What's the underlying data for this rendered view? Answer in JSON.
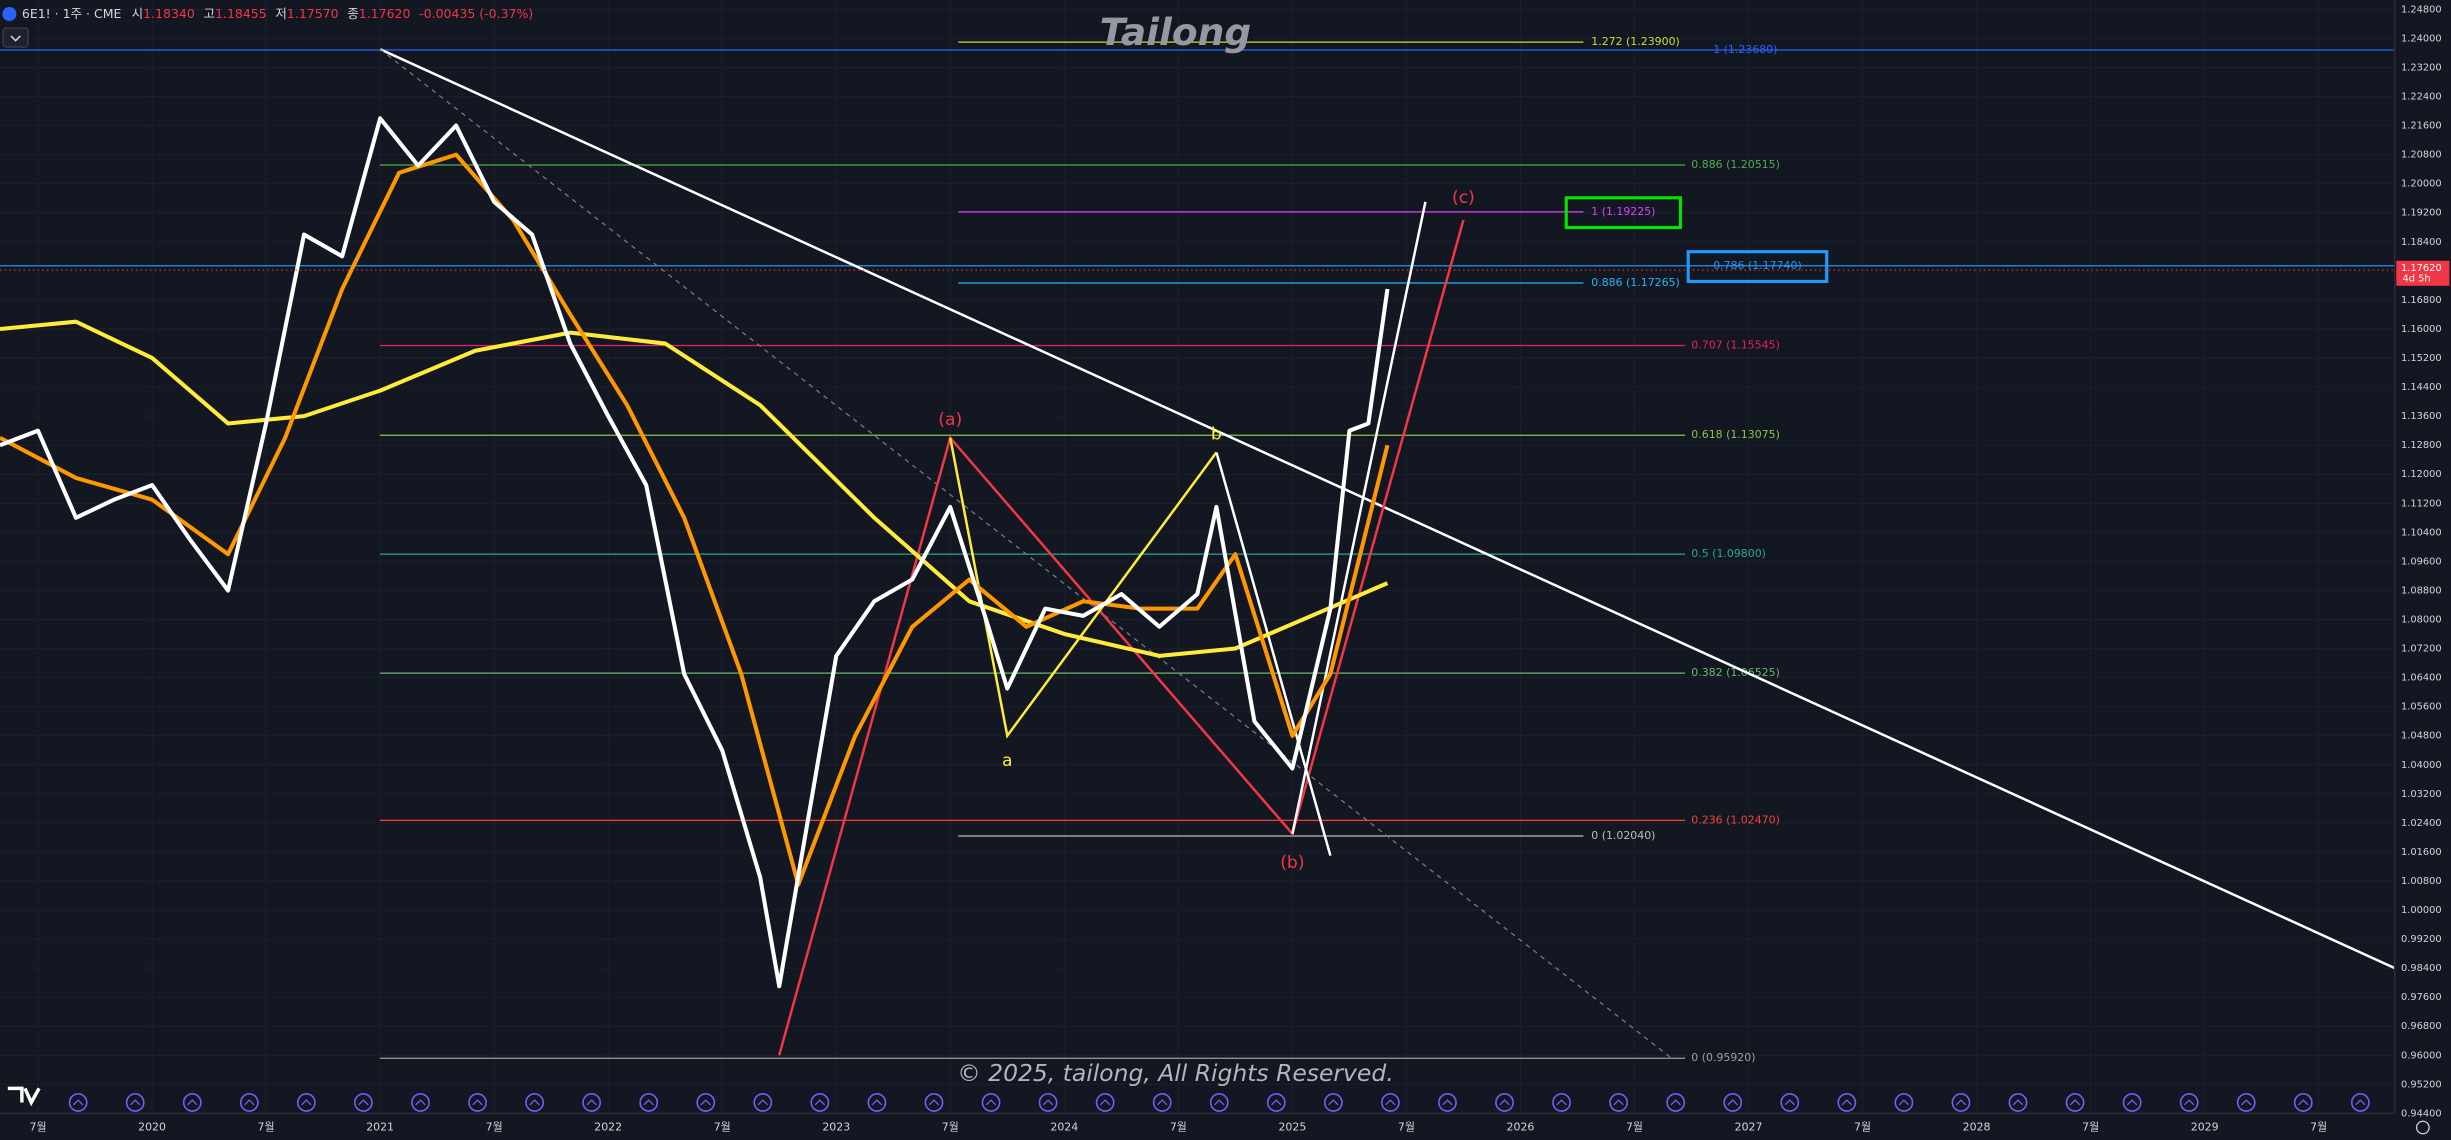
{
  "header": {
    "symbol": "6E1! · 1주 · CME",
    "o_label": "시",
    "o": "1.18340",
    "h_label": "고",
    "h": "1.18455",
    "l_label": "저",
    "l": "1.17570",
    "c_label": "종",
    "c": "1.17620",
    "change": "-0.00435 (-0.37%)"
  },
  "watermark": "Tailong",
  "copyright": "© 2025, tailong, All Rights Reserved.",
  "chart_data": {
    "type": "line",
    "grid": true,
    "xlim": [
      "2019-05",
      "2029-11"
    ],
    "ylim": [
      0.944,
      1.248
    ],
    "xticks": [
      {
        "value": "2019-07",
        "label": "7월"
      },
      {
        "value": "2020-01",
        "label": "2020"
      },
      {
        "value": "2020-07",
        "label": "7월"
      },
      {
        "value": "2021-01",
        "label": "2021"
      },
      {
        "value": "2021-07",
        "label": "7월"
      },
      {
        "value": "2022-01",
        "label": "2022"
      },
      {
        "value": "2022-07",
        "label": "7월"
      },
      {
        "value": "2023-01",
        "label": "2023"
      },
      {
        "value": "2023-07",
        "label": "7월"
      },
      {
        "value": "2024-01",
        "label": "2024"
      },
      {
        "value": "2024-07",
        "label": "7월"
      },
      {
        "value": "2025-01",
        "label": "2025"
      },
      {
        "value": "2025-07",
        "label": "7월"
      },
      {
        "value": "2026-01",
        "label": "2026"
      },
      {
        "value": "2026-07",
        "label": "7월"
      },
      {
        "value": "2027-01",
        "label": "2027"
      },
      {
        "value": "2027-07",
        "label": "7월"
      },
      {
        "value": "2028-01",
        "label": "2028"
      },
      {
        "value": "2028-07",
        "label": "7월"
      },
      {
        "value": "2029-01",
        "label": "2029"
      },
      {
        "value": "2029-07",
        "label": "7월"
      }
    ],
    "yticks": [
      {
        "value": 1.248,
        "label": "1.24800"
      },
      {
        "value": 1.24,
        "label": "1.24000"
      },
      {
        "value": 1.232,
        "label": "1.23200"
      },
      {
        "value": 1.224,
        "label": "1.22400"
      },
      {
        "value": 1.216,
        "label": "1.21600"
      },
      {
        "value": 1.208,
        "label": "1.20800"
      },
      {
        "value": 1.2,
        "label": "1.20000"
      },
      {
        "value": 1.192,
        "label": "1.19200"
      },
      {
        "value": 1.184,
        "label": "1.18400"
      },
      {
        "value": 1.168,
        "label": "1.16800"
      },
      {
        "value": 1.16,
        "label": "1.16000"
      },
      {
        "value": 1.152,
        "label": "1.15200"
      },
      {
        "value": 1.144,
        "label": "1.14400"
      },
      {
        "value": 1.136,
        "label": "1.13600"
      },
      {
        "value": 1.128,
        "label": "1.12800"
      },
      {
        "value": 1.12,
        "label": "1.12000"
      },
      {
        "value": 1.112,
        "label": "1.11200"
      },
      {
        "value": 1.104,
        "label": "1.10400"
      },
      {
        "value": 1.096,
        "label": "1.09600"
      },
      {
        "value": 1.088,
        "label": "1.08800"
      },
      {
        "value": 1.08,
        "label": "1.08000"
      },
      {
        "value": 1.072,
        "label": "1.07200"
      },
      {
        "value": 1.064,
        "label": "1.06400"
      },
      {
        "value": 1.056,
        "label": "1.05600"
      },
      {
        "value": 1.048,
        "label": "1.04800"
      },
      {
        "value": 1.04,
        "label": "1.04000"
      },
      {
        "value": 1.032,
        "label": "1.03200"
      },
      {
        "value": 1.024,
        "label": "1.02400"
      },
      {
        "value": 1.016,
        "label": "1.01600"
      },
      {
        "value": 1.008,
        "label": "1.00800"
      },
      {
        "value": 1,
        "label": "1.00000"
      },
      {
        "value": 0.992,
        "label": "0.99200"
      },
      {
        "value": 0.984,
        "label": "0.98400"
      },
      {
        "value": 0.976,
        "label": "0.97600"
      },
      {
        "value": 0.968,
        "label": "0.96800"
      },
      {
        "value": 0.96,
        "label": "0.96000"
      },
      {
        "value": 0.952,
        "label": "0.95200"
      },
      {
        "value": 0.944,
        "label": "0.94400"
      }
    ],
    "series": [
      {
        "color": "#ffeb3b",
        "x": [
          "2019-05",
          "2019-09",
          "2020-01",
          "2020-05",
          "2020-09",
          "2021-01",
          "2021-06",
          "2021-11",
          "2022-04",
          "2022-09",
          "2023-03",
          "2023-08",
          "2024-01",
          "2024-06",
          "2024-10",
          "2025-02",
          "2025-06"
        ],
        "values": [
          1.16,
          1.162,
          1.152,
          1.134,
          1.136,
          1.143,
          1.154,
          1.159,
          1.156,
          1.139,
          1.108,
          1.085,
          1.076,
          1.07,
          1.072,
          1.081,
          1.09
        ]
      },
      {
        "color": "#ff9800",
        "x": [
          "2019-05",
          "2019-09",
          "2020-01",
          "2020-05",
          "2020-08",
          "2020-11",
          "2021-02",
          "2021-05",
          "2021-08",
          "2021-11",
          "2022-02",
          "2022-05",
          "2022-08",
          "2022-11",
          "2023-02",
          "2023-05",
          "2023-08",
          "2023-11",
          "2024-02",
          "2024-05",
          "2024-08",
          "2024-10",
          "2025-01",
          "2025-03",
          "2025-06"
        ],
        "values": [
          1.13,
          1.119,
          1.113,
          1.098,
          1.13,
          1.171,
          1.203,
          1.208,
          1.19,
          1.164,
          1.139,
          1.108,
          1.065,
          1.007,
          1.048,
          1.078,
          1.091,
          1.078,
          1.085,
          1.083,
          1.083,
          1.098,
          1.048,
          1.065,
          1.128
        ]
      },
      {
        "color": "#ffffff",
        "x": [
          "2019-05",
          "2019-07",
          "2019-09",
          "2019-11",
          "2020-01",
          "2020-03",
          "2020-05",
          "2020-07",
          "2020-09",
          "2020-11",
          "2021-01",
          "2021-03",
          "2021-05",
          "2021-07",
          "2021-09",
          "2021-11",
          "2022-01",
          "2022-03",
          "2022-05",
          "2022-07",
          "2022-09",
          "2022-10",
          "2023-01",
          "2023-03",
          "2023-05",
          "2023-07",
          "2023-09",
          "2023-10",
          "2023-12",
          "2024-02",
          "2024-04",
          "2024-06",
          "2024-08",
          "2024-09",
          "2024-11",
          "2025-01",
          "2025-03",
          "2025-04",
          "2025-05",
          "2025-06"
        ],
        "values": [
          1.128,
          1.132,
          1.108,
          1.113,
          1.117,
          1.102,
          1.088,
          1.134,
          1.186,
          1.18,
          1.218,
          1.205,
          1.216,
          1.195,
          1.186,
          1.156,
          1.136,
          1.117,
          1.065,
          1.044,
          1.009,
          0.979,
          1.07,
          1.085,
          1.091,
          1.111,
          1.078,
          1.061,
          1.083,
          1.081,
          1.087,
          1.078,
          1.087,
          1.111,
          1.052,
          1.039,
          1.083,
          1.132,
          1.134,
          1.171
        ]
      }
    ],
    "trendlines": [
      {
        "color": "#ffffff",
        "dash": false,
        "x": [
          "2021-01",
          "2029-11"
        ],
        "values": [
          1.237,
          0.984
        ]
      },
      {
        "color": "#787b86",
        "dash": true,
        "x": [
          "2021-01",
          "2026-09"
        ],
        "values": [
          1.237,
          0.959
        ]
      },
      {
        "color": "#f23645",
        "dash": false,
        "x": [
          "2022-10",
          "2023-07",
          "2025-01",
          "2025-10"
        ],
        "values": [
          0.96,
          1.13,
          1.021,
          1.19
        ]
      },
      {
        "color": "#ffeb3b",
        "dash": false,
        "x": [
          "2023-07",
          "2023-10",
          "2024-09"
        ],
        "values": [
          1.13,
          1.048,
          1.126
        ]
      },
      {
        "color": "#ffffff",
        "dash": false,
        "x": [
          "2024-09",
          "2025-03"
        ],
        "values": [
          1.126,
          1.015
        ]
      },
      {
        "color": "#ffffff",
        "dash": false,
        "x": [
          "2025-01",
          "2025-08"
        ],
        "values": [
          1.021,
          1.195
        ]
      }
    ],
    "wave_labels": [
      {
        "text": "(a)",
        "color": "#f23645",
        "x": "2023-07",
        "value": 1.135
      },
      {
        "text": "b",
        "color": "#ffeb3b",
        "x": "2024-09",
        "value": 1.131
      },
      {
        "text": "a",
        "color": "#ffeb3b",
        "x": "2023-10",
        "value": 1.041
      },
      {
        "text": "(b)",
        "color": "#f23645",
        "x": "2025-01",
        "value": 1.013
      },
      {
        "text": "(c)",
        "color": "#f23645",
        "x": "2025-10",
        "value": 1.196
      }
    ],
    "fib_a": [
      {
        "label": "0.886 (1.20515)",
        "value": 1.20515,
        "color": "#4caf50"
      },
      {
        "label": "0.707 (1.15545)",
        "value": 1.15545,
        "color": "#e91e63"
      },
      {
        "label": "0.618 (1.13075)",
        "value": 1.13075,
        "color": "#8bc34a"
      },
      {
        "label": "0.5 (1.09800)",
        "value": 1.098,
        "color": "#26a69a"
      },
      {
        "label": "0.382 (1.06525)",
        "value": 1.06525,
        "color": "#66bb6a"
      },
      {
        "label": "0.236 (1.02470)",
        "value": 1.0247,
        "color": "#f44336"
      },
      {
        "label": "0 (0.95920)",
        "value": 0.9592,
        "color": "#9e9e9e"
      }
    ],
    "fib_b": [
      {
        "label": "1.272 (1.23900)",
        "value": 1.239,
        "color": "#cddc39"
      },
      {
        "label": "1 (1.19225)",
        "value": 1.19225,
        "color": "#e040fb",
        "box": "#00e600"
      },
      {
        "label": "0.886 (1.17265)",
        "value": 1.17265,
        "color": "#29b6f6"
      },
      {
        "label": "0 (1.02040)",
        "value": 1.0204,
        "color": "#bdbdbd"
      }
    ],
    "fib_full": [
      {
        "label": "1 (1.23680)",
        "value": 1.2368,
        "color": "#2962ff"
      },
      {
        "label": "0.786 (1.17740)",
        "value": 1.1774,
        "color": "#2196f3",
        "box": "#1e9bff"
      }
    ],
    "last_price": {
      "value": 1.1762,
      "label": "1.17620",
      "countdown": "4d 5h",
      "color": "#f23645"
    }
  }
}
